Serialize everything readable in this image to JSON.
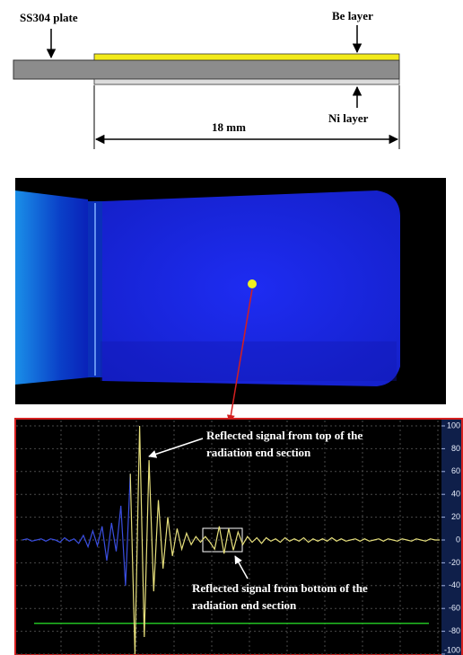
{
  "schematic": {
    "plate_label": "SS304 plate",
    "be_label": "Be layer",
    "ni_label": "Ni layer",
    "length_label": "18 mm"
  },
  "chart_data": {
    "type": "line",
    "ylim": [
      -100,
      100
    ],
    "yticks": [
      100,
      80,
      60,
      40,
      20,
      0,
      -20,
      -40,
      -60,
      -80,
      -100
    ],
    "grid": true,
    "threshold": {
      "value": -73,
      "color": "#22c022"
    },
    "annotations": [
      {
        "lines": [
          "Reflected signal from top of the",
          "radiation  end section"
        ]
      },
      {
        "lines": [
          "Reflected signal from bottom of the",
          "radiation  end section"
        ]
      }
    ],
    "series": [
      {
        "color": "#3a4ee0",
        "values": [
          0,
          1,
          -1,
          0,
          1,
          -1,
          1,
          0,
          -2,
          2,
          -1,
          1,
          -3,
          4,
          -6,
          8,
          -5,
          12,
          -18,
          15,
          -10,
          30,
          -40,
          58,
          null,
          null,
          null,
          null,
          null,
          null,
          null,
          null,
          null,
          null,
          null,
          null,
          null,
          null,
          null,
          null,
          null,
          null,
          null,
          null,
          null,
          null,
          null,
          null,
          null,
          null,
          null,
          null,
          null,
          null,
          null,
          null,
          null,
          null,
          null,
          null,
          null,
          null,
          null,
          null,
          null,
          null,
          null,
          null,
          null,
          null,
          null,
          null,
          null,
          null,
          null,
          null,
          null,
          null,
          null,
          null,
          null,
          null,
          null,
          null,
          null,
          null,
          null,
          null,
          null,
          null
        ]
      },
      {
        "color": "#e6df7c",
        "values": [
          null,
          null,
          null,
          null,
          null,
          null,
          null,
          null,
          null,
          null,
          null,
          null,
          null,
          null,
          null,
          null,
          null,
          null,
          null,
          null,
          null,
          null,
          null,
          58,
          -100,
          100,
          -85,
          70,
          -45,
          35,
          -25,
          20,
          -14,
          10,
          -8,
          6,
          -4,
          3,
          -2,
          3,
          -2,
          -8,
          12,
          -12,
          10,
          -9,
          7,
          -4,
          3,
          -2,
          2,
          -3,
          2,
          -1,
          1,
          -2,
          2,
          -1,
          1,
          -1,
          2,
          -2,
          1,
          -1,
          1,
          -1,
          2,
          -1,
          1,
          -1,
          0,
          1,
          -1,
          1,
          -1,
          0,
          1,
          -1,
          1,
          0,
          -1,
          1,
          0,
          -1,
          1,
          0,
          -1,
          1,
          0,
          0
        ]
      }
    ]
  }
}
